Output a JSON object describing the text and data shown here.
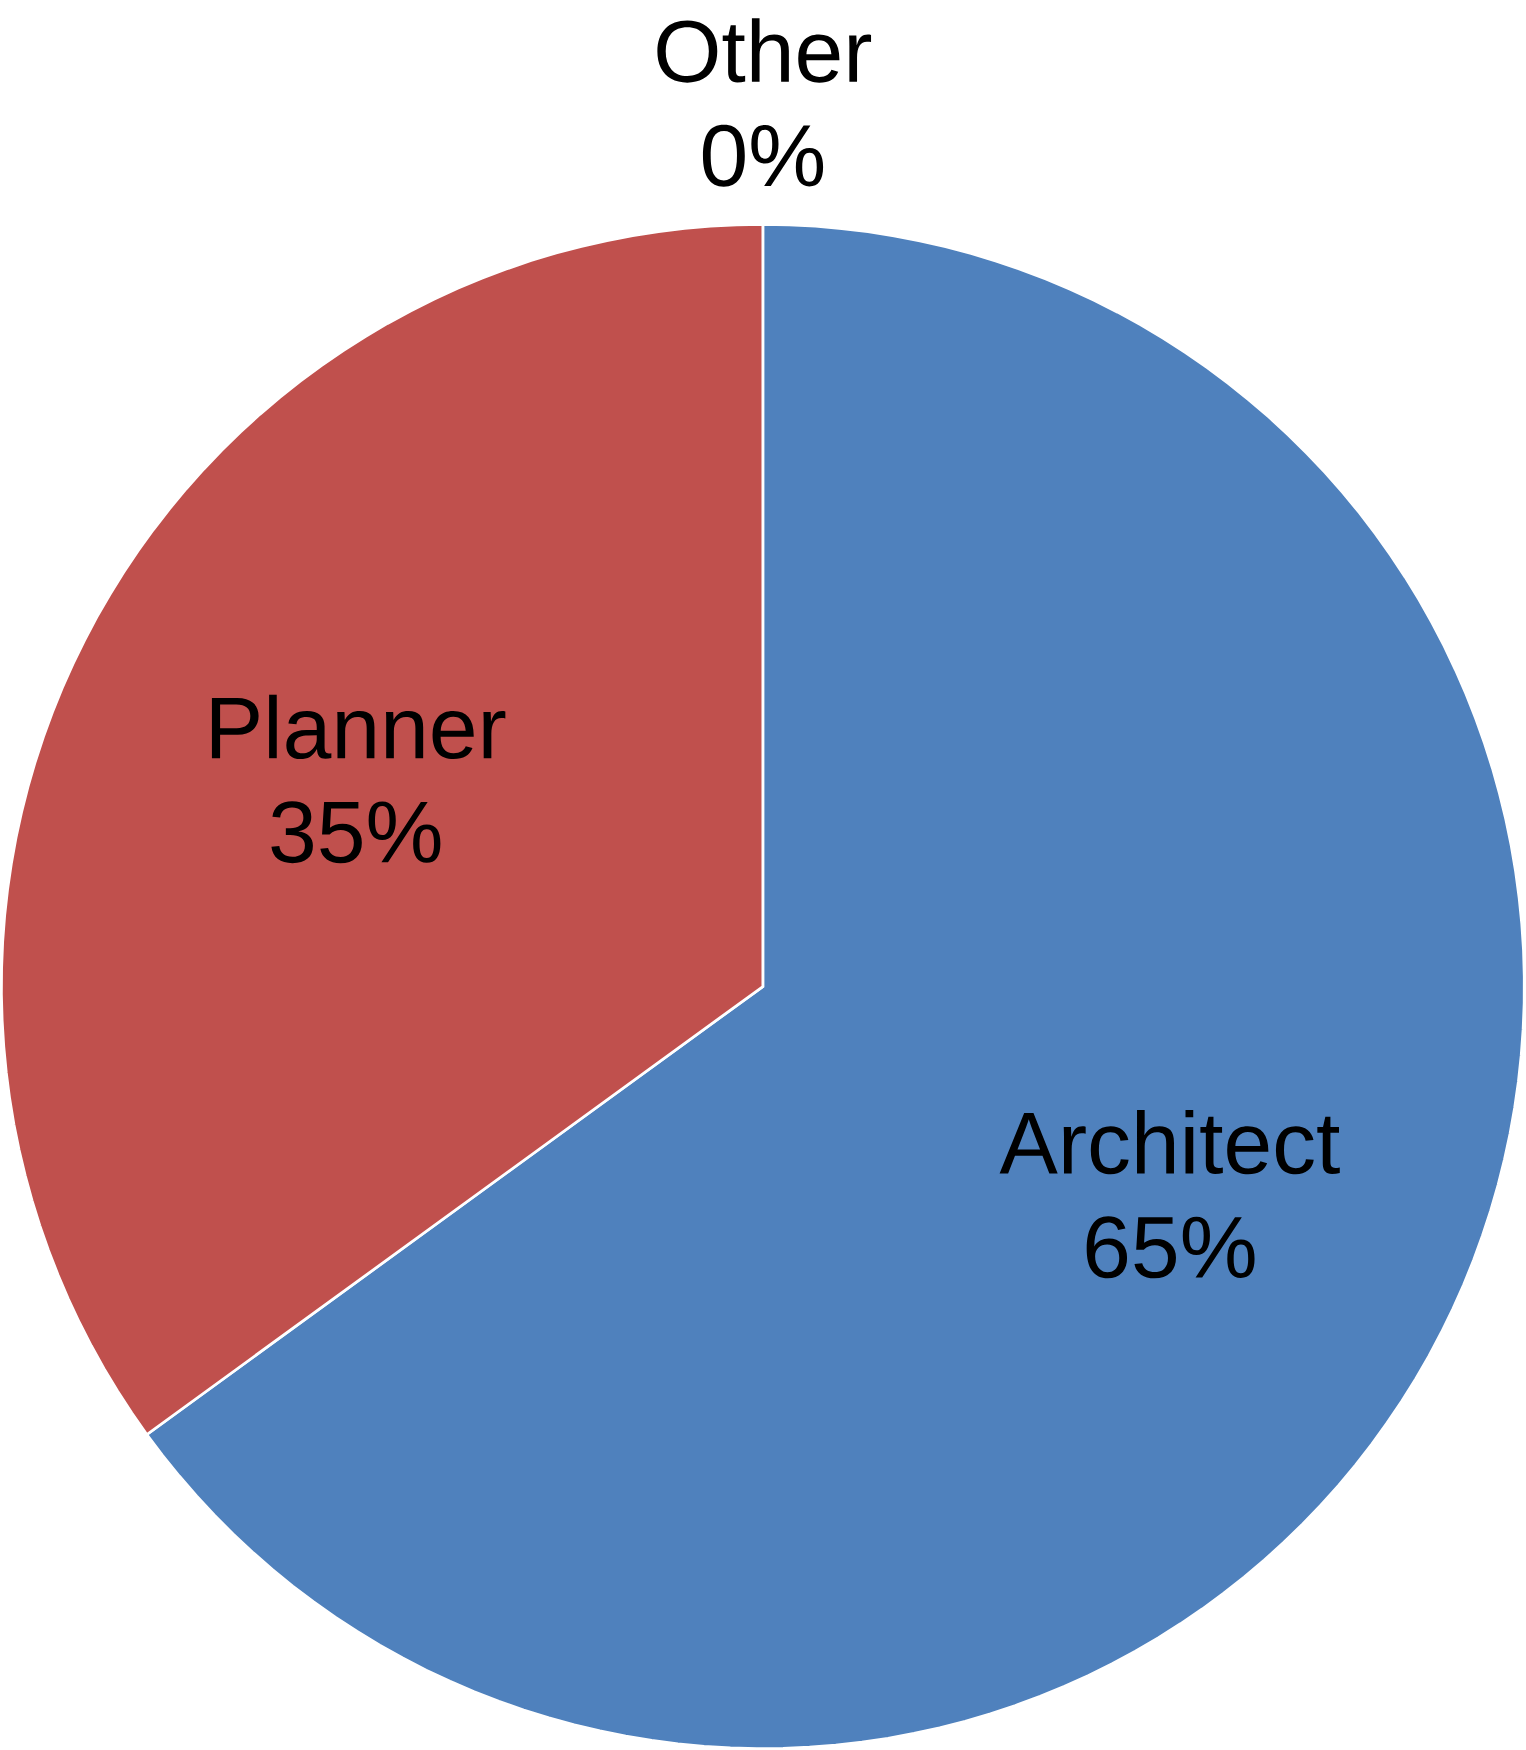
{
  "chart_data": {
    "type": "pie",
    "categories": [
      "Architect",
      "Planner",
      "Other"
    ],
    "values": [
      65,
      35,
      0
    ],
    "value_labels": [
      "65%",
      "35%",
      "0%"
    ],
    "colors": [
      "#4f81bd",
      "#c0504d",
      "#9bbb59"
    ]
  }
}
